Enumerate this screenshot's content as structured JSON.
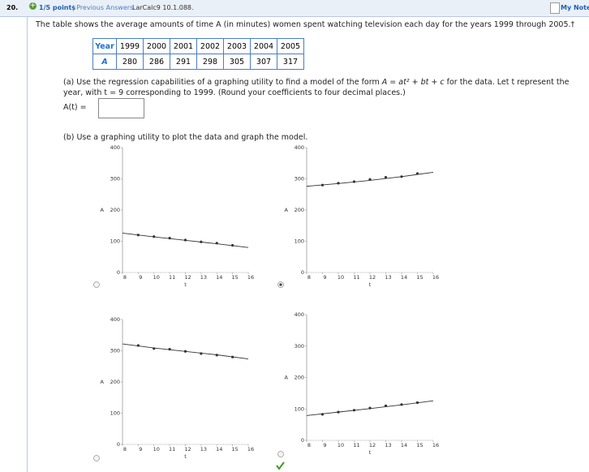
{
  "header": {
    "number": "20.",
    "points": "1/5 points",
    "previous": "| Previous Answers",
    "source": "LarCalc9 10.1.088.",
    "notes": "My Notes"
  },
  "question": "The table shows the average amounts of time A (in minutes) women spent watching television each day for the years 1999 through 2005.†",
  "table": {
    "rows": [
      [
        "Year",
        "1999",
        "2000",
        "2001",
        "2002",
        "2003",
        "2004",
        "2005"
      ],
      [
        "A",
        "280",
        "286",
        "291",
        "298",
        "305",
        "307",
        "317"
      ]
    ]
  },
  "part_a": {
    "before": "(a) Use the regression capabilities of a graphing utility to find a model of the form ",
    "formula": "A = at² + bt + c",
    "after": " for the data. Let t represent the year, with t = 9 corresponding to 1999. (Round your coefficients to four decimal places.)",
    "answer_label": "A(t) ="
  },
  "part_b": "(b) Use a graphing utility to plot the data and graph the model.",
  "choices": [
    {
      "selected": false
    },
    {
      "selected": true
    },
    {
      "selected": false
    },
    {
      "selected": false
    }
  ],
  "chart_data": [
    {
      "type": "line",
      "xlabel": "t",
      "ylabel": "A",
      "xlim": [
        8,
        16
      ],
      "ylim": [
        0,
        400
      ],
      "xticks": [
        8,
        9,
        10,
        11,
        12,
        13,
        14,
        15,
        16
      ],
      "yticks": [
        0,
        100,
        200,
        300,
        400
      ],
      "series": [
        {
          "color": "#333333",
          "marker": true,
          "x": [
            9,
            10,
            11,
            12,
            13,
            14,
            15
          ],
          "values": [
            120,
            115,
            110,
            104,
            98,
            94,
            87
          ]
        },
        {
          "color": "#333333",
          "marker": false,
          "x": [
            8,
            10,
            12,
            14,
            16
          ],
          "values": [
            126,
            114,
            103,
            92,
            80
          ]
        }
      ]
    },
    {
      "type": "line",
      "xlabel": "t",
      "ylabel": "A",
      "xlim": [
        8,
        16
      ],
      "ylim": [
        0,
        400
      ],
      "xticks": [
        8,
        9,
        10,
        11,
        12,
        13,
        14,
        15,
        16
      ],
      "yticks": [
        0,
        100,
        200,
        300,
        400
      ],
      "series": [
        {
          "color": "#333333",
          "marker": true,
          "x": [
            9,
            10,
            11,
            12,
            13,
            14,
            15
          ],
          "values": [
            280,
            286,
            291,
            298,
            305,
            307,
            317
          ]
        },
        {
          "color": "#333333",
          "marker": false,
          "x": [
            8,
            10,
            12,
            14,
            16
          ],
          "values": [
            276,
            285,
            295,
            307,
            321
          ]
        }
      ]
    },
    {
      "type": "line",
      "xlabel": "t",
      "ylabel": "A",
      "xlim": [
        8,
        16
      ],
      "ylim": [
        0,
        400
      ],
      "xticks": [
        8,
        9,
        10,
        11,
        12,
        13,
        14,
        15,
        16
      ],
      "yticks": [
        0,
        100,
        200,
        300,
        400
      ],
      "series": [
        {
          "color": "#333333",
          "marker": true,
          "x": [
            9,
            10,
            11,
            12,
            13,
            14,
            15
          ],
          "values": [
            317,
            307,
            305,
            298,
            291,
            286,
            280
          ]
        },
        {
          "color": "#333333",
          "marker": false,
          "x": [
            8,
            10,
            12,
            14,
            16
          ],
          "values": [
            322,
            309,
            298,
            287,
            274
          ]
        }
      ]
    },
    {
      "type": "line",
      "xlabel": "t",
      "ylabel": "A",
      "xlim": [
        8,
        16
      ],
      "ylim": [
        0,
        400
      ],
      "xticks": [
        8,
        9,
        10,
        11,
        12,
        13,
        14,
        15,
        16
      ],
      "yticks": [
        0,
        100,
        200,
        300,
        400
      ],
      "series": [
        {
          "color": "#333333",
          "marker": true,
          "x": [
            9,
            10,
            11,
            12,
            13,
            14,
            15
          ],
          "values": [
            83,
            90,
            96,
            103,
            110,
            114,
            120
          ]
        },
        {
          "color": "#333333",
          "marker": false,
          "x": [
            8,
            10,
            12,
            14,
            16
          ],
          "values": [
            79,
            90,
            101,
            113,
            126
          ]
        }
      ]
    }
  ]
}
